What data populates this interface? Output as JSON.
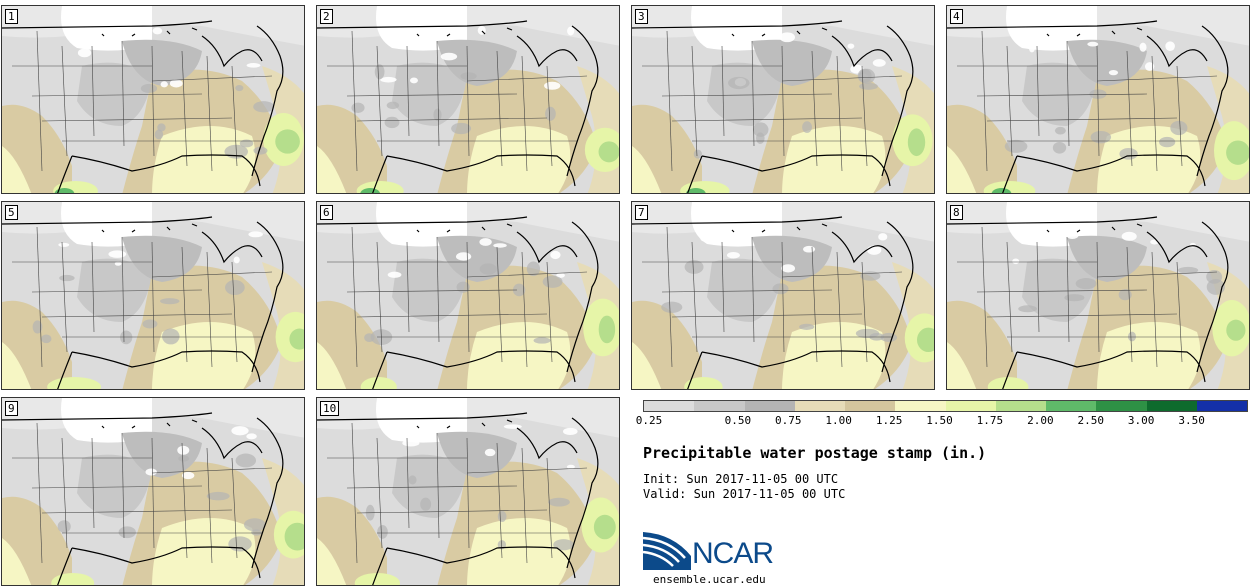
{
  "panels": [
    {
      "label": "1"
    },
    {
      "label": "2"
    },
    {
      "label": "3"
    },
    {
      "label": "4"
    },
    {
      "label": "5"
    },
    {
      "label": "6"
    },
    {
      "label": "7"
    },
    {
      "label": "8"
    },
    {
      "label": "9"
    },
    {
      "label": "10"
    }
  ],
  "colorbar": {
    "labels": [
      "0.25",
      "0.50",
      "0.75",
      "1.00",
      "1.25",
      "1.50",
      "1.75",
      "2.00",
      "2.50",
      "3.00",
      "3.50"
    ],
    "colors": [
      "#dcdcdc",
      "#c8c8c8",
      "#b4b4b4",
      "#e6dcb8",
      "#d4c69e",
      "#f6f6c4",
      "#e6f5a8",
      "#b5de8c",
      "#5fba69",
      "#2e9145",
      "#0e6b2d",
      "#1430a8"
    ]
  },
  "title": "Precipitable water postage stamp (in.)",
  "init": "Init: Sun 2017-11-05 00 UTC",
  "valid": "Valid: Sun 2017-11-05 00 UTC",
  "logo_text": "NCAR",
  "site": "ensemble.ucar.edu"
}
